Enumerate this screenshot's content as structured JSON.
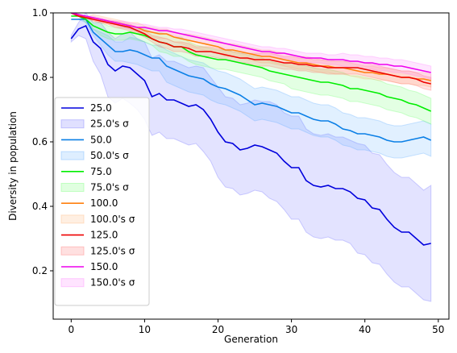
{
  "chart_data": {
    "type": "line",
    "title": "",
    "xlabel": "Generation",
    "ylabel": "Diversity in population",
    "xlim": [
      -2.45,
      51.45
    ],
    "ylim": [
      0.05,
      1.0
    ],
    "x_ticks": [
      0,
      10,
      20,
      30,
      40,
      50
    ],
    "y_ticks": [
      0.2,
      0.4,
      0.6,
      0.8,
      1.0
    ],
    "x_tick_labels": [
      "0",
      "10",
      "20",
      "30",
      "40",
      "50"
    ],
    "y_tick_labels": [
      "0.2",
      "0.4",
      "0.6",
      "0.8",
      "1.0"
    ],
    "grid": false,
    "legend_position": "lower-left",
    "legend_labels": [
      "25.0",
      "25.0's σ",
      "50.0",
      "50.0's σ",
      "75.0",
      "75.0's σ",
      "100.0",
      "100.0's σ",
      "125.0",
      "125.0's σ",
      "150.0",
      "150.0's σ"
    ],
    "x": [
      0,
      1,
      2,
      3,
      4,
      5,
      6,
      7,
      8,
      9,
      10,
      11,
      12,
      13,
      14,
      15,
      16,
      17,
      18,
      19,
      20,
      21,
      22,
      23,
      24,
      25,
      26,
      27,
      28,
      29,
      30,
      31,
      32,
      33,
      34,
      35,
      36,
      37,
      38,
      39,
      40,
      41,
      42,
      43,
      44,
      45,
      46,
      47,
      48,
      49
    ],
    "series": [
      {
        "name": "25.0",
        "color": "#0000dd",
        "band_color": "#6666ff",
        "values": [
          0.92,
          0.95,
          0.96,
          0.91,
          0.89,
          0.84,
          0.82,
          0.835,
          0.83,
          0.81,
          0.79,
          0.74,
          0.75,
          0.73,
          0.73,
          0.72,
          0.71,
          0.715,
          0.7,
          0.67,
          0.63,
          0.6,
          0.595,
          0.575,
          0.58,
          0.59,
          0.585,
          0.575,
          0.565,
          0.54,
          0.52,
          0.52,
          0.48,
          0.465,
          0.46,
          0.465,
          0.455,
          0.455,
          0.445,
          0.425,
          0.42,
          0.395,
          0.39,
          0.36,
          0.335,
          0.32,
          0.32,
          0.3,
          0.28,
          0.285
        ],
        "sigma": [
          0.01,
          0.02,
          0.04,
          0.06,
          0.08,
          0.1,
          0.1,
          0.1,
          0.11,
          0.11,
          0.12,
          0.12,
          0.12,
          0.12,
          0.12,
          0.12,
          0.12,
          0.12,
          0.13,
          0.13,
          0.14,
          0.14,
          0.14,
          0.14,
          0.14,
          0.14,
          0.14,
          0.15,
          0.15,
          0.15,
          0.16,
          0.16,
          0.16,
          0.16,
          0.16,
          0.16,
          0.16,
          0.16,
          0.16,
          0.17,
          0.17,
          0.17,
          0.17,
          0.17,
          0.17,
          0.17,
          0.17,
          0.17,
          0.17,
          0.18
        ]
      },
      {
        "name": "50.0",
        "color": "#0a7fe6",
        "band_color": "#5aaaff",
        "values": [
          0.98,
          0.98,
          0.98,
          0.94,
          0.92,
          0.9,
          0.88,
          0.88,
          0.885,
          0.88,
          0.87,
          0.86,
          0.86,
          0.835,
          0.825,
          0.815,
          0.805,
          0.8,
          0.795,
          0.78,
          0.77,
          0.765,
          0.755,
          0.745,
          0.73,
          0.715,
          0.72,
          0.715,
          0.71,
          0.7,
          0.69,
          0.69,
          0.68,
          0.67,
          0.665,
          0.665,
          0.655,
          0.64,
          0.635,
          0.625,
          0.625,
          0.62,
          0.615,
          0.605,
          0.6,
          0.6,
          0.605,
          0.61,
          0.615,
          0.605
        ],
        "sigma": [
          0.0,
          0.0,
          0.01,
          0.01,
          0.02,
          0.03,
          0.03,
          0.03,
          0.04,
          0.04,
          0.04,
          0.04,
          0.04,
          0.05,
          0.05,
          0.05,
          0.05,
          0.05,
          0.05,
          0.05,
          0.05,
          0.05,
          0.05,
          0.05,
          0.05,
          0.05,
          0.05,
          0.05,
          0.05,
          0.05,
          0.05,
          0.05,
          0.05,
          0.05,
          0.05,
          0.05,
          0.05,
          0.05,
          0.05,
          0.05,
          0.05,
          0.05,
          0.05,
          0.05,
          0.05,
          0.05,
          0.05,
          0.05,
          0.05,
          0.05
        ]
      },
      {
        "name": "75.0",
        "color": "#00ee00",
        "band_color": "#66ff66",
        "values": [
          0.99,
          0.99,
          0.98,
          0.96,
          0.95,
          0.94,
          0.935,
          0.935,
          0.94,
          0.935,
          0.93,
          0.92,
          0.91,
          0.905,
          0.895,
          0.895,
          0.88,
          0.87,
          0.865,
          0.86,
          0.855,
          0.855,
          0.85,
          0.845,
          0.84,
          0.835,
          0.83,
          0.82,
          0.815,
          0.81,
          0.805,
          0.8,
          0.795,
          0.79,
          0.785,
          0.785,
          0.78,
          0.775,
          0.765,
          0.765,
          0.76,
          0.755,
          0.75,
          0.74,
          0.735,
          0.73,
          0.72,
          0.715,
          0.705,
          0.695
        ],
        "sigma": [
          0.0,
          0.0,
          0.01,
          0.01,
          0.02,
          0.02,
          0.02,
          0.02,
          0.02,
          0.02,
          0.02,
          0.02,
          0.03,
          0.03,
          0.03,
          0.03,
          0.03,
          0.03,
          0.03,
          0.03,
          0.03,
          0.03,
          0.03,
          0.03,
          0.03,
          0.03,
          0.03,
          0.03,
          0.03,
          0.03,
          0.04,
          0.04,
          0.04,
          0.04,
          0.04,
          0.04,
          0.04,
          0.04,
          0.04,
          0.04,
          0.04,
          0.04,
          0.04,
          0.04,
          0.04,
          0.04,
          0.04,
          0.04,
          0.04,
          0.04
        ]
      },
      {
        "name": "100.0",
        "color": "#ff7f0e",
        "band_color": "#ffb070",
        "values": [
          1.0,
          0.995,
          0.985,
          0.985,
          0.98,
          0.975,
          0.97,
          0.965,
          0.96,
          0.955,
          0.945,
          0.94,
          0.935,
          0.935,
          0.925,
          0.92,
          0.915,
          0.91,
          0.905,
          0.9,
          0.895,
          0.885,
          0.885,
          0.88,
          0.875,
          0.87,
          0.865,
          0.865,
          0.86,
          0.855,
          0.85,
          0.845,
          0.845,
          0.84,
          0.835,
          0.835,
          0.83,
          0.83,
          0.825,
          0.82,
          0.815,
          0.815,
          0.81,
          0.81,
          0.805,
          0.8,
          0.8,
          0.795,
          0.795,
          0.79
        ],
        "sigma": [
          0.0,
          0.0,
          0.0,
          0.01,
          0.01,
          0.01,
          0.01,
          0.01,
          0.01,
          0.015,
          0.015,
          0.015,
          0.015,
          0.015,
          0.015,
          0.015,
          0.02,
          0.02,
          0.02,
          0.02,
          0.02,
          0.02,
          0.02,
          0.02,
          0.02,
          0.02,
          0.02,
          0.02,
          0.02,
          0.02,
          0.02,
          0.02,
          0.02,
          0.02,
          0.02,
          0.02,
          0.02,
          0.02,
          0.02,
          0.02,
          0.02,
          0.02,
          0.02,
          0.02,
          0.02,
          0.02,
          0.02,
          0.02,
          0.02,
          0.02
        ]
      },
      {
        "name": "125.0",
        "color": "#ee0000",
        "band_color": "#ff6666",
        "values": [
          1.0,
          0.99,
          0.985,
          0.98,
          0.975,
          0.97,
          0.965,
          0.96,
          0.955,
          0.945,
          0.935,
          0.92,
          0.91,
          0.905,
          0.895,
          0.895,
          0.89,
          0.88,
          0.88,
          0.88,
          0.875,
          0.87,
          0.865,
          0.86,
          0.86,
          0.855,
          0.855,
          0.855,
          0.85,
          0.845,
          0.845,
          0.84,
          0.84,
          0.835,
          0.835,
          0.83,
          0.83,
          0.83,
          0.83,
          0.83,
          0.825,
          0.82,
          0.815,
          0.81,
          0.805,
          0.8,
          0.8,
          0.795,
          0.785,
          0.78
        ],
        "sigma": [
          0.0,
          0.0,
          0.0,
          0.005,
          0.005,
          0.005,
          0.01,
          0.01,
          0.01,
          0.01,
          0.01,
          0.01,
          0.015,
          0.015,
          0.015,
          0.015,
          0.015,
          0.015,
          0.015,
          0.015,
          0.015,
          0.015,
          0.015,
          0.015,
          0.015,
          0.02,
          0.02,
          0.02,
          0.02,
          0.02,
          0.02,
          0.02,
          0.02,
          0.02,
          0.02,
          0.02,
          0.02,
          0.02,
          0.02,
          0.02,
          0.02,
          0.02,
          0.02,
          0.02,
          0.02,
          0.02,
          0.02,
          0.02,
          0.02,
          0.02
        ]
      },
      {
        "name": "150.0",
        "color": "#ee00ee",
        "band_color": "#ff77ff",
        "values": [
          1.0,
          0.995,
          0.99,
          0.985,
          0.98,
          0.975,
          0.97,
          0.965,
          0.96,
          0.955,
          0.955,
          0.95,
          0.945,
          0.945,
          0.94,
          0.935,
          0.93,
          0.925,
          0.92,
          0.915,
          0.91,
          0.905,
          0.9,
          0.895,
          0.89,
          0.885,
          0.88,
          0.88,
          0.875,
          0.875,
          0.87,
          0.865,
          0.86,
          0.86,
          0.86,
          0.855,
          0.855,
          0.855,
          0.85,
          0.85,
          0.845,
          0.845,
          0.84,
          0.84,
          0.835,
          0.835,
          0.83,
          0.825,
          0.82,
          0.815
        ],
        "sigma": [
          0.0,
          0.0,
          0.0,
          0.005,
          0.005,
          0.005,
          0.005,
          0.01,
          0.01,
          0.01,
          0.01,
          0.01,
          0.01,
          0.01,
          0.01,
          0.015,
          0.015,
          0.015,
          0.015,
          0.015,
          0.015,
          0.015,
          0.015,
          0.015,
          0.015,
          0.015,
          0.015,
          0.015,
          0.015,
          0.015,
          0.015,
          0.015,
          0.015,
          0.015,
          0.015,
          0.015,
          0.015,
          0.02,
          0.02,
          0.02,
          0.02,
          0.02,
          0.02,
          0.02,
          0.02,
          0.02,
          0.02,
          0.02,
          0.02,
          0.02
        ]
      }
    ]
  }
}
